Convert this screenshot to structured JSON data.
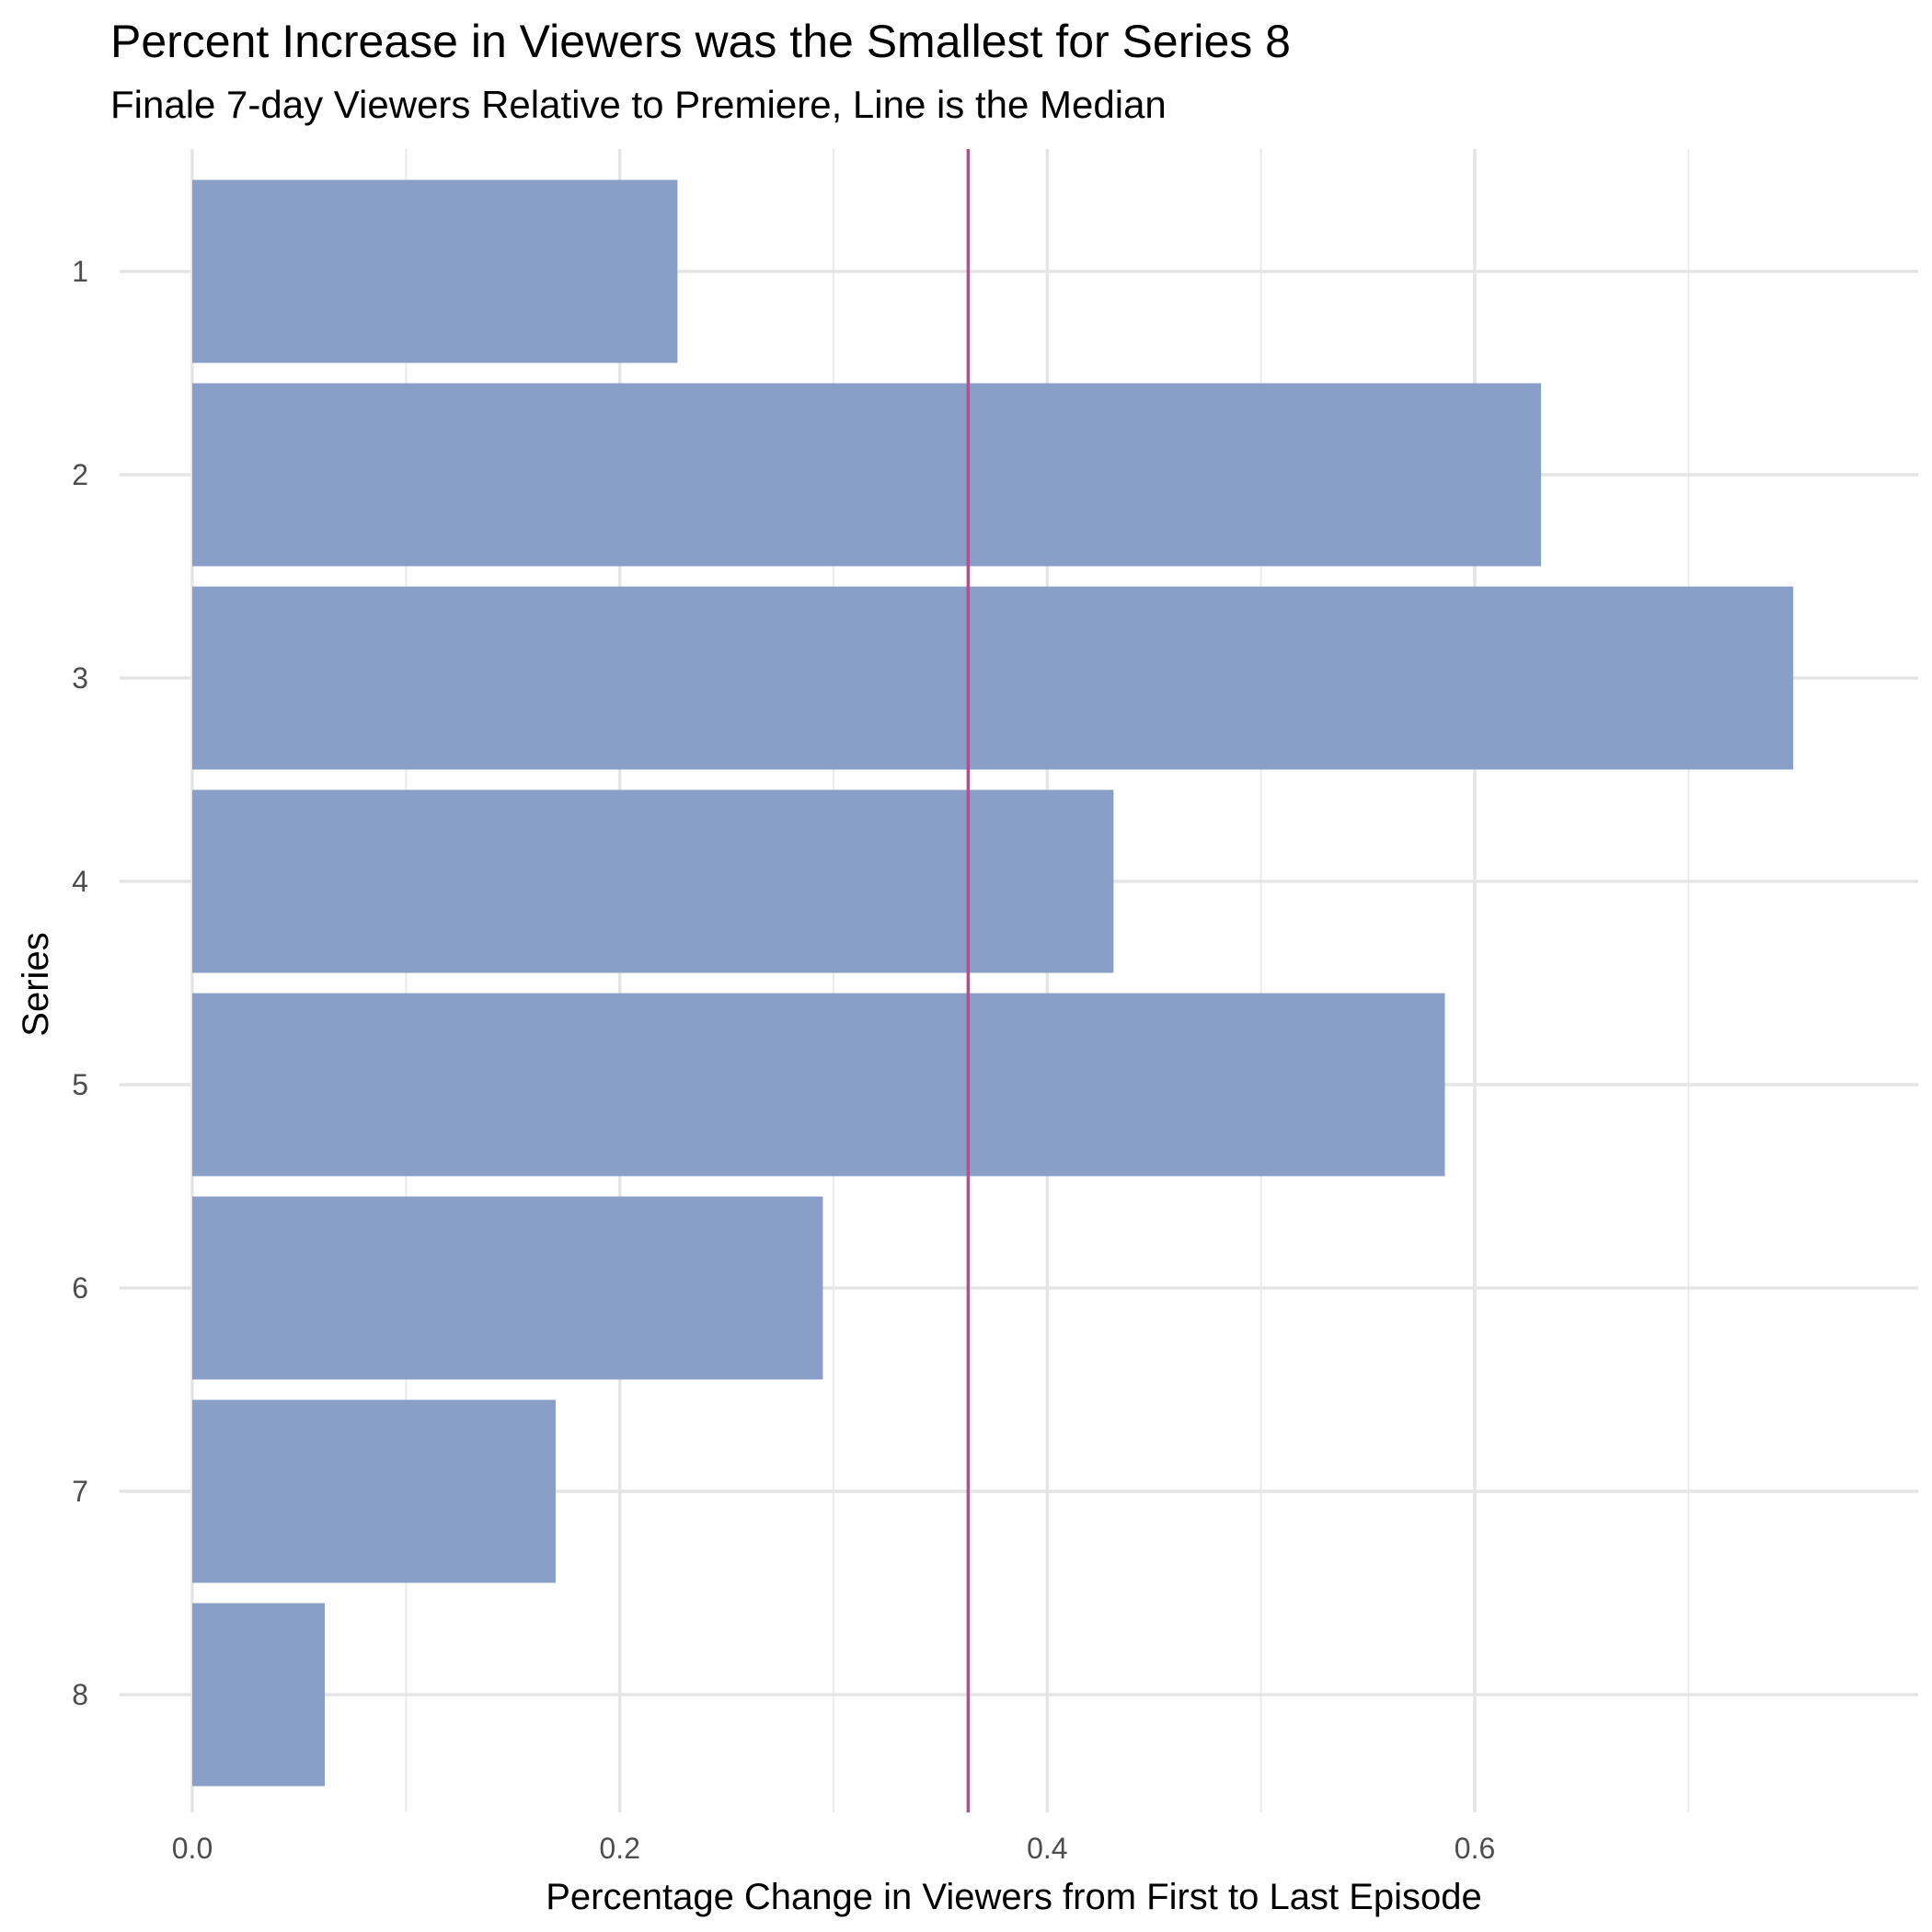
{
  "chart_data": {
    "type": "bar",
    "orientation": "horizontal",
    "title": "Percent Increase in Viewers was the Smallest for Series 8",
    "subtitle": "Finale 7-day Viewers Relative to Premiere, Line is the Median",
    "xlabel": "Percentage Change in Viewers from First to Last Episode",
    "ylabel": "Series",
    "categories": [
      "1",
      "2",
      "3",
      "4",
      "5",
      "6",
      "7",
      "8"
    ],
    "values": [
      0.227,
      0.631,
      0.749,
      0.431,
      0.586,
      0.295,
      0.17,
      0.062
    ],
    "median": 0.363,
    "xlim": [
      0,
      0.77
    ],
    "x_ticks": [
      0.0,
      0.2,
      0.4,
      0.6
    ],
    "x_tick_labels": [
      "0.0",
      "0.2",
      "0.4",
      "0.6"
    ],
    "grid": true,
    "legend": "none",
    "colors": {
      "bar": "#8a9fc8",
      "median_line": "#c2478d"
    }
  }
}
